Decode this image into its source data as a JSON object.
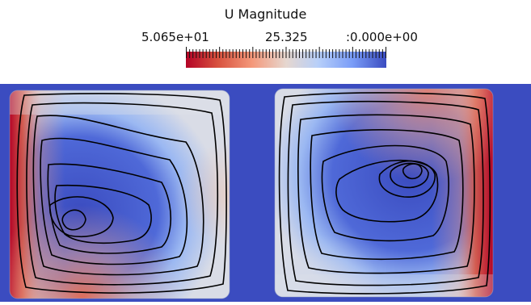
{
  "legend": {
    "title": "U Magnitude",
    "tick_labels": {
      "min": "5.065e+01",
      "mid": "25.325",
      "max": ":0.000e+00"
    },
    "colormap": [
      "#b40426",
      "#d8523f",
      "#f4987a",
      "#e6d7cf",
      "#b7cff9",
      "#7a9df8",
      "#3b4cc0"
    ]
  },
  "field": {
    "background_color": "#3b4cc0",
    "cells": [
      {
        "name": "left-cell",
        "hotspots": [
          "left-wall",
          "bottom-left-corner"
        ]
      },
      {
        "name": "right-cell",
        "hotspots": [
          "right-wall",
          "top-right-corner"
        ]
      }
    ],
    "streamline_color": "#000000"
  }
}
